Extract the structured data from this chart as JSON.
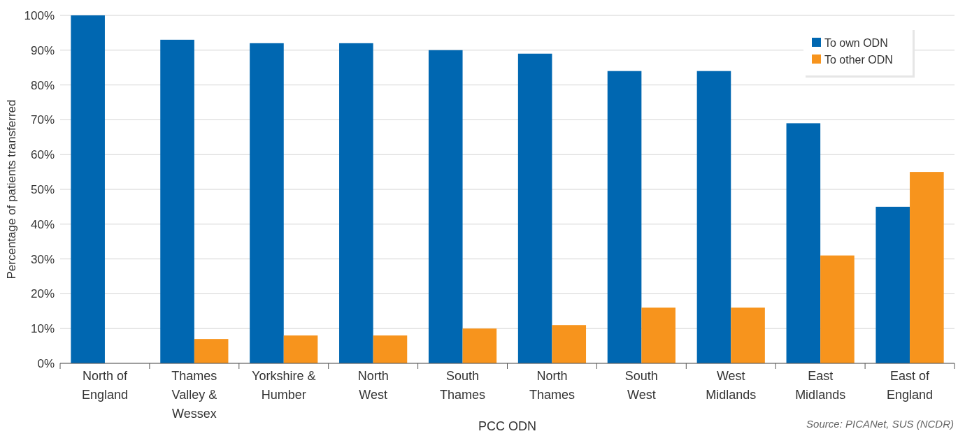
{
  "chart_data": {
    "type": "bar",
    "xlabel": "PCC ODN",
    "ylabel": "Percentage of patients transferred",
    "categories": [
      "North of\nEngland",
      "Thames\nValley &\nWessex",
      "Yorkshire &\nHumber",
      "North\nWest",
      "South\nThames",
      "North\nThames",
      "South\nWest",
      "West\nMidlands",
      "East\nMidlands",
      "East of\nEngland"
    ],
    "series": [
      {
        "name": "To own ODN",
        "color": "#0067b1",
        "values": [
          100,
          93,
          92,
          92,
          90,
          89,
          84,
          84,
          69,
          45
        ]
      },
      {
        "name": "To other ODN",
        "color": "#f7941d",
        "values": [
          0,
          7,
          8,
          8,
          10,
          11,
          16,
          16,
          31,
          55
        ]
      }
    ],
    "ylim": [
      0,
      100
    ],
    "yticks": [
      {
        "value": 0,
        "label": "0%"
      },
      {
        "value": 10,
        "label": "10%"
      },
      {
        "value": 20,
        "label": "20%"
      },
      {
        "value": 30,
        "label": "30%"
      },
      {
        "value": 40,
        "label": "40%"
      },
      {
        "value": 50,
        "label": "50%"
      },
      {
        "value": 60,
        "label": "60%"
      },
      {
        "value": 70,
        "label": "70%"
      },
      {
        "value": 80,
        "label": "80%"
      },
      {
        "value": 90,
        "label": "90%"
      },
      {
        "value": 100,
        "label": "100%"
      }
    ],
    "grid": "y",
    "legend": "top right",
    "annotations": [
      "Source: PICANet, SUS (NCDR)"
    ]
  }
}
